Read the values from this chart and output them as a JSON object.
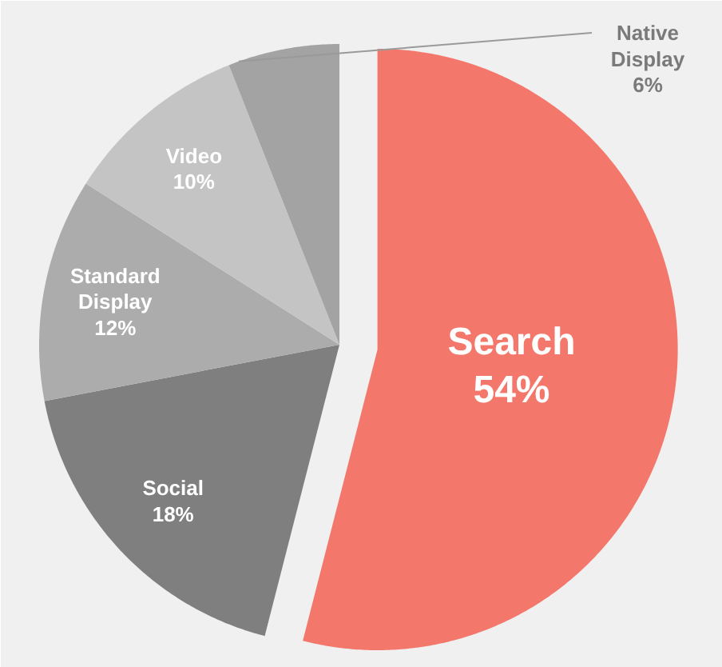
{
  "chart_data": {
    "type": "pie",
    "categories": [
      "Search",
      "Social",
      "Standard Display",
      "Video",
      "Native Display"
    ],
    "values": [
      54,
      18,
      12,
      10,
      6
    ],
    "colors": [
      "#f4776b",
      "#7f7f7f",
      "#acacac",
      "#c4c4c4",
      "#a3a3a3"
    ],
    "value_labels": [
      "54%",
      "18%",
      "12%",
      "10%",
      "6%"
    ]
  }
}
